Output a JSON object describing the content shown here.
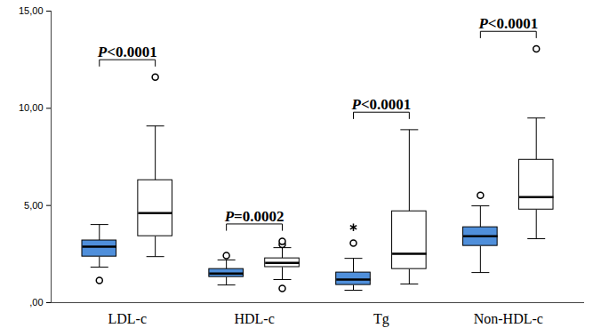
{
  "chart_data": {
    "type": "box",
    "categories": [
      "LDL-c",
      "HDL-c",
      "Tg",
      "Non-HDL-c"
    ],
    "annotations": [
      "P<0.0001",
      "P=0.0002",
      "P<0.0001",
      "P<0.0001"
    ],
    "ylim": [
      0,
      15
    ],
    "yticks": [
      {
        "value": 0,
        "label": ",00"
      },
      {
        "value": 5,
        "label": "5,00"
      },
      {
        "value": 10,
        "label": "10,00"
      },
      {
        "value": 15,
        "label": "15,00"
      }
    ],
    "series": [
      {
        "color": "#4f8fdb",
        "values": [
          {
            "min": 1.83,
            "q1": 2.37,
            "median": 2.88,
            "q3": 3.2,
            "max": 4.02,
            "outliers": [
              1.14
            ],
            "extremes": []
          },
          {
            "min": 0.91,
            "q1": 1.32,
            "median": 1.5,
            "q3": 1.73,
            "max": 2.2,
            "outliers": [
              2.42
            ],
            "extremes": []
          },
          {
            "min": 0.64,
            "q1": 0.91,
            "median": 1.19,
            "q3": 1.55,
            "max": 2.28,
            "outliers": [
              3.06
            ],
            "extremes": [
              3.88
            ]
          },
          {
            "min": 1.55,
            "q1": 2.92,
            "median": 3.42,
            "q3": 3.88,
            "max": 4.98,
            "outliers": [
              5.52
            ],
            "extremes": []
          }
        ]
      },
      {
        "color": "#ffffff",
        "values": [
          {
            "min": 2.37,
            "q1": 3.42,
            "median": 4.61,
            "q3": 6.3,
            "max": 9.09,
            "outliers": [
              11.6
            ],
            "extremes": []
          },
          {
            "min": 1.19,
            "q1": 1.83,
            "median": 2.05,
            "q3": 2.28,
            "max": 2.83,
            "outliers": [
              0.73,
              3.0,
              3.15
            ],
            "extremes": []
          },
          {
            "min": 0.96,
            "q1": 1.73,
            "median": 2.51,
            "q3": 4.7,
            "max": 8.9,
            "outliers": [],
            "extremes": []
          },
          {
            "min": 3.29,
            "q1": 4.79,
            "median": 5.43,
            "q3": 7.35,
            "max": 9.5,
            "outliers": [
              13.06
            ],
            "extremes": []
          }
        ]
      }
    ]
  }
}
